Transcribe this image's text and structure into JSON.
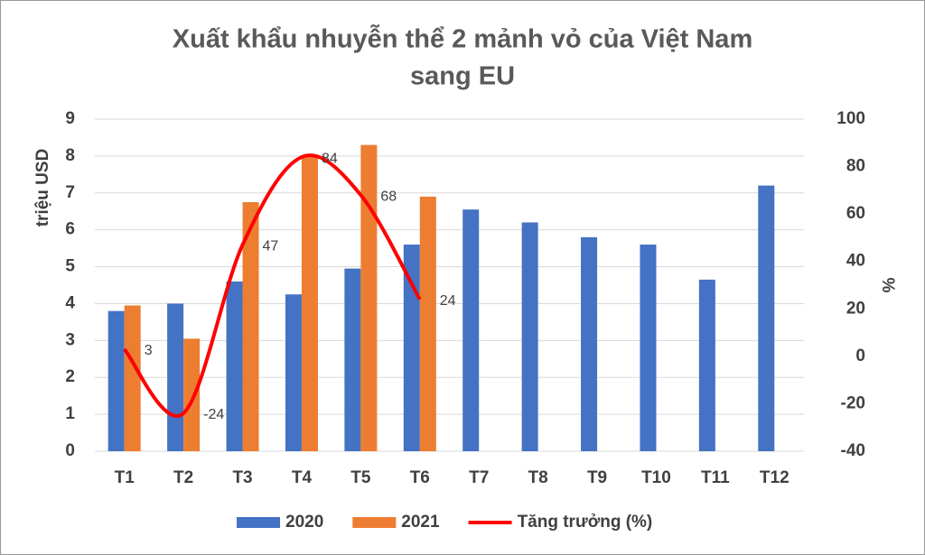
{
  "chart_data": {
    "type": "bar-line",
    "title": [
      "Xuất khẩu nhuyễn thể 2 mảnh vỏ của Việt Nam",
      "sang EU"
    ],
    "ylabel": "triệu USD",
    "y2label": "%",
    "categories": [
      "T1",
      "T2",
      "T3",
      "T4",
      "T5",
      "T6",
      "T7",
      "T8",
      "T9",
      "T10",
      "T11",
      "T12"
    ],
    "series": [
      {
        "name": "2020",
        "type": "bar",
        "color": "#4472c4",
        "values": [
          3.8,
          4.0,
          4.6,
          4.25,
          4.95,
          5.6,
          6.55,
          6.2,
          5.8,
          5.6,
          4.65,
          7.2
        ]
      },
      {
        "name": "2021",
        "type": "bar",
        "color": "#ed7d31",
        "values": [
          3.95,
          3.05,
          6.75,
          8.0,
          8.3,
          6.9,
          null,
          null,
          null,
          null,
          null,
          null
        ]
      },
      {
        "name": "Tăng trưởng (%)",
        "type": "line",
        "axis": "y2",
        "color": "#ff0000",
        "values": [
          3,
          -24,
          47,
          84,
          68,
          24,
          null,
          null,
          null,
          null,
          null,
          null
        ]
      }
    ],
    "ylim": [
      0,
      9
    ],
    "yticks": [
      0,
      1,
      2,
      3,
      4,
      5,
      6,
      7,
      8,
      9
    ],
    "y2lim": [
      -40,
      100
    ],
    "y2ticks": [
      -40,
      -20,
      0,
      20,
      40,
      60,
      80,
      100
    ],
    "grid": true,
    "legend": "bottom"
  }
}
